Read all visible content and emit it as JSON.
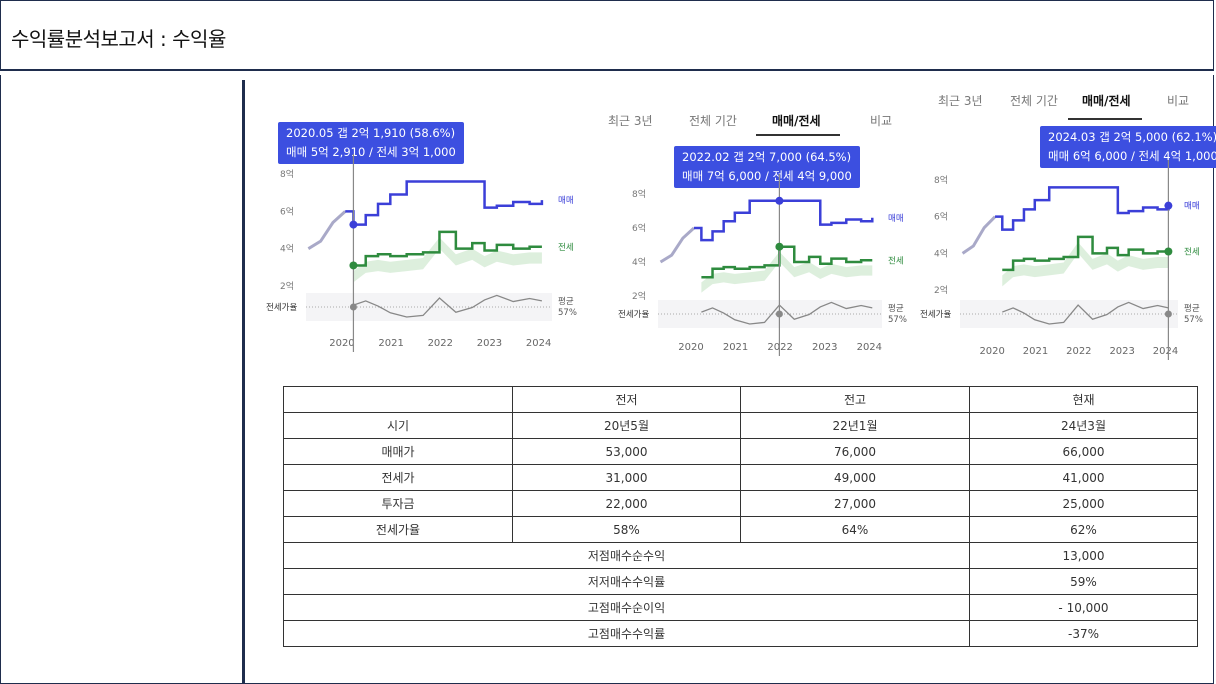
{
  "header": {
    "title": "수익률분석보고서 : 수익율"
  },
  "tab_labels": [
    "최근 3년",
    "전체 기간",
    "매매/전세",
    "비교"
  ],
  "charts": [
    {
      "tooltip_line1": "2020.05  갭 2억 1,910 (58.6%)",
      "tooltip_line2": "매매 5억 2,910 / 전세 3억 1,000",
      "show_tabs": false
    },
    {
      "tooltip_line1": "2022.02  갭 2억 7,000 (64.5%)",
      "tooltip_line2": "매매 7억 6,000 / 전세 4억 9,000",
      "show_tabs": true
    },
    {
      "tooltip_line1": "2024.03  갭 2억 5,000 (62.1%)",
      "tooltip_line2": "매매 6억 6,000 / 전세 4억 1,000",
      "show_tabs": true
    }
  ],
  "chart_axis": {
    "y_ticks": [
      "8억",
      "6억",
      "4억",
      "2억"
    ],
    "x_ticks": [
      "2020",
      "2021",
      "2022",
      "2023",
      "2024"
    ],
    "series_labels": {
      "sale": "매매",
      "jeonse": "전세"
    },
    "ratio_label": "전세가율",
    "avg_label": "평균",
    "avg_value": "57%"
  },
  "chart_data": {
    "type": "line",
    "x": [
      "2019.06",
      "2019.09",
      "2019.12",
      "2020.03",
      "2020.05",
      "2020.08",
      "2020.11",
      "2021.02",
      "2021.06",
      "2021.10",
      "2022.02",
      "2022.06",
      "2022.10",
      "2023.01",
      "2023.04",
      "2023.08",
      "2023.12",
      "2024.03"
    ],
    "series": [
      {
        "name": "매매",
        "values": [
          4.0,
          4.4,
          5.4,
          6.0,
          5.29,
          5.8,
          6.4,
          6.9,
          7.6,
          7.6,
          7.6,
          7.6,
          7.6,
          6.2,
          6.3,
          6.5,
          6.4,
          6.6
        ]
      },
      {
        "name": "전세",
        "values": [
          null,
          null,
          null,
          null,
          3.1,
          3.6,
          3.7,
          3.6,
          3.7,
          3.8,
          4.9,
          4.0,
          4.3,
          3.9,
          4.2,
          4.0,
          4.1,
          4.1
        ]
      }
    ],
    "ylim": [
      2,
      8
    ],
    "y_ticks": [
      "8억",
      "6억",
      "4억",
      "2억"
    ],
    "x_ticks": [
      "2020",
      "2021",
      "2022",
      "2023",
      "2024"
    ],
    "ratio_average": "57%"
  },
  "table": {
    "header": [
      "",
      "전저",
      "전고",
      "현재"
    ],
    "rows": [
      [
        "시기",
        "20년5월",
        "22년1월",
        "24년3월"
      ],
      [
        "매매가",
        "53,000",
        "76,000",
        "66,000"
      ],
      [
        "전세가",
        "31,000",
        "49,000",
        "41,000"
      ],
      [
        "투자금",
        "22,000",
        "27,000",
        "25,000"
      ],
      [
        "전세가율",
        "58%",
        "64%",
        "62%"
      ]
    ],
    "summary": [
      [
        "저점매수순수익",
        "13,000"
      ],
      [
        "저저매수수익률",
        "59%"
      ],
      [
        "고점매수순이익",
        "- 10,000"
      ],
      [
        "고점매수수익률",
        "-37%"
      ]
    ]
  },
  "colors": {
    "sale": "#3b3fd8",
    "jeonse": "#2e8b3e",
    "tooltip": "#3c4fe0",
    "frame": "#1f2d4d"
  }
}
